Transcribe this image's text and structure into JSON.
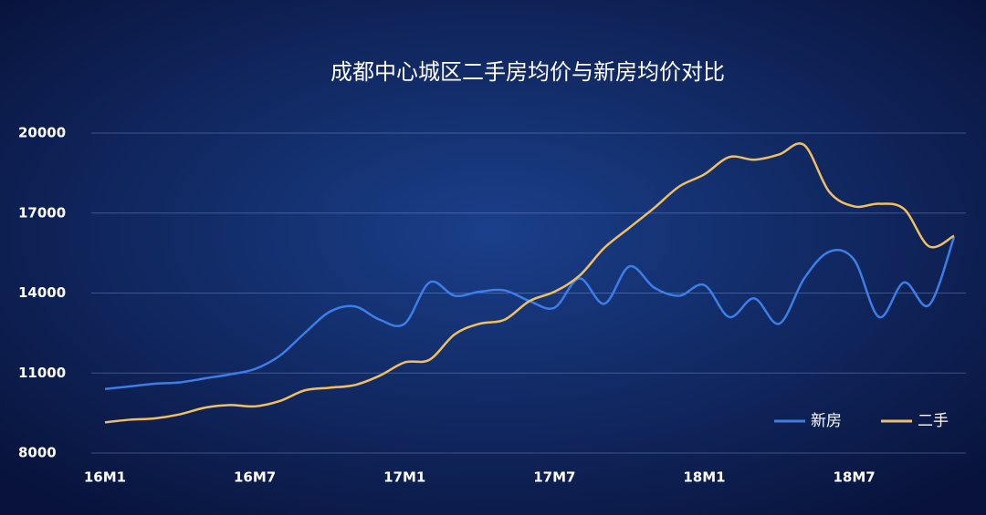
{
  "chart_data": {
    "type": "line",
    "title": "成都中心城区二手房均价与新房均价对比",
    "categories": [
      "16M1",
      null,
      null,
      null,
      null,
      null,
      "16M7",
      null,
      null,
      null,
      null,
      null,
      "17M1",
      null,
      null,
      null,
      null,
      null,
      "17M7",
      null,
      null,
      null,
      null,
      null,
      "18M1",
      null,
      null,
      null,
      null,
      null,
      "18M7",
      null,
      null,
      null,
      null
    ],
    "series": [
      {
        "name": "新房",
        "color": "#3d7ee6",
        "values": [
          10400,
          10500,
          10600,
          10650,
          10800,
          10950,
          11150,
          11650,
          12500,
          13300,
          13500,
          13000,
          12850,
          14400,
          13900,
          14050,
          14100,
          13700,
          13450,
          14550,
          13600,
          15000,
          14200,
          13900,
          14300,
          13100,
          13800,
          12850,
          14550,
          15550,
          15250,
          13100,
          14400,
          13550,
          16100
        ]
      },
      {
        "name": "二手",
        "color": "#f0c060",
        "values": [
          9150,
          9250,
          9300,
          9450,
          9700,
          9800,
          9750,
          9950,
          10350,
          10450,
          10550,
          10900,
          11400,
          11500,
          12450,
          12850,
          13000,
          13700,
          14050,
          14650,
          15700,
          16450,
          17200,
          18000,
          18450,
          19100,
          19000,
          19200,
          19550,
          17800,
          17250,
          17350,
          17150,
          15750,
          16150
        ]
      }
    ],
    "ylim": [
      8000,
      20000
    ],
    "yticks": [
      8000,
      11000,
      14000,
      17000,
      20000
    ],
    "grid": true,
    "legend": "lower right"
  }
}
